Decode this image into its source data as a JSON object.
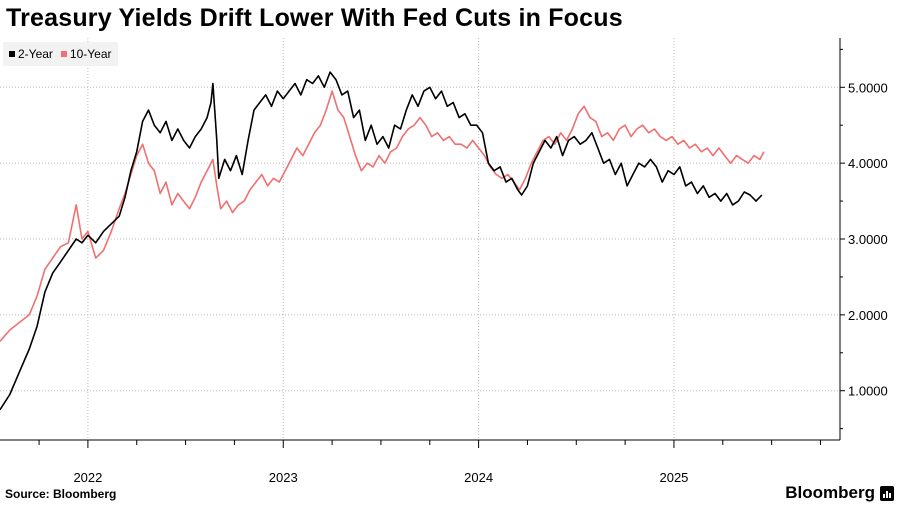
{
  "title": "Treasury Yields Drift Lower With Fed Cuts in Focus",
  "footer": {
    "source": "Source: Bloomberg",
    "brand": "Bloomberg",
    "brand_icon": "bloomberg-terminal-icon"
  },
  "colors": {
    "two_year": "#000000",
    "ten_year": "#f07070",
    "grid": "#bbbbbb"
  },
  "chart_data": {
    "type": "line",
    "title": "Treasury Yields Drift Lower With Fed Cuts in Focus",
    "xlabel": "",
    "ylabel": "",
    "xlim": [
      2021.55,
      2025.85
    ],
    "ylim": [
      0.35,
      5.65
    ],
    "y_ticks": [
      1,
      2,
      3,
      4,
      5
    ],
    "y_tick_labels": [
      "1.0000",
      "2.0000",
      "3.0000",
      "4.0000",
      "5.0000"
    ],
    "x_ticks": [
      2022,
      2023,
      2024,
      2025
    ],
    "x_tick_labels": [
      "2022",
      "2023",
      "2024",
      "2025"
    ],
    "y_axis_position": "right",
    "grid": "horizontal dotted",
    "legend_position": "top-left",
    "series": [
      {
        "name": "2-Year",
        "color": "#000000",
        "points": [
          [
            2021.55,
            0.75
          ],
          [
            2021.6,
            0.95
          ],
          [
            2021.65,
            1.25
          ],
          [
            2021.7,
            1.55
          ],
          [
            2021.74,
            1.85
          ],
          [
            2021.78,
            2.3
          ],
          [
            2021.82,
            2.55
          ],
          [
            2021.86,
            2.7
          ],
          [
            2021.9,
            2.85
          ],
          [
            2021.94,
            3.0
          ],
          [
            2021.97,
            2.95
          ],
          [
            2022.0,
            3.05
          ],
          [
            2022.04,
            2.95
          ],
          [
            2022.08,
            3.1
          ],
          [
            2022.12,
            3.2
          ],
          [
            2022.16,
            3.3
          ],
          [
            2022.19,
            3.55
          ],
          [
            2022.22,
            3.9
          ],
          [
            2022.25,
            4.15
          ],
          [
            2022.28,
            4.55
          ],
          [
            2022.31,
            4.7
          ],
          [
            2022.34,
            4.5
          ],
          [
            2022.37,
            4.4
          ],
          [
            2022.4,
            4.55
          ],
          [
            2022.43,
            4.3
          ],
          [
            2022.46,
            4.45
          ],
          [
            2022.49,
            4.3
          ],
          [
            2022.52,
            4.2
          ],
          [
            2022.55,
            4.35
          ],
          [
            2022.58,
            4.45
          ],
          [
            2022.61,
            4.6
          ],
          [
            2022.63,
            4.8
          ],
          [
            2022.64,
            5.05
          ],
          [
            2022.66,
            4.3
          ],
          [
            2022.67,
            3.8
          ],
          [
            2022.7,
            4.05
          ],
          [
            2022.73,
            3.9
          ],
          [
            2022.76,
            4.1
          ],
          [
            2022.79,
            3.85
          ],
          [
            2022.82,
            4.3
          ],
          [
            2022.85,
            4.7
          ],
          [
            2022.88,
            4.8
          ],
          [
            2022.91,
            4.9
          ],
          [
            2022.94,
            4.75
          ],
          [
            2022.97,
            4.95
          ],
          [
            2023.0,
            4.85
          ],
          [
            2023.03,
            4.95
          ],
          [
            2023.06,
            5.05
          ],
          [
            2023.09,
            4.9
          ],
          [
            2023.12,
            5.1
          ],
          [
            2023.15,
            5.05
          ],
          [
            2023.18,
            5.15
          ],
          [
            2023.21,
            5.0
          ],
          [
            2023.24,
            5.2
          ],
          [
            2023.27,
            5.1
          ],
          [
            2023.3,
            4.9
          ],
          [
            2023.33,
            4.95
          ],
          [
            2023.36,
            4.6
          ],
          [
            2023.39,
            4.7
          ],
          [
            2023.42,
            4.3
          ],
          [
            2023.45,
            4.5
          ],
          [
            2023.48,
            4.25
          ],
          [
            2023.51,
            4.35
          ],
          [
            2023.54,
            4.2
          ],
          [
            2023.57,
            4.5
          ],
          [
            2023.6,
            4.45
          ],
          [
            2023.63,
            4.7
          ],
          [
            2023.66,
            4.9
          ],
          [
            2023.69,
            4.75
          ],
          [
            2023.72,
            4.95
          ],
          [
            2023.75,
            5.0
          ],
          [
            2023.78,
            4.85
          ],
          [
            2023.81,
            4.95
          ],
          [
            2023.84,
            4.75
          ],
          [
            2023.87,
            4.8
          ],
          [
            2023.9,
            4.6
          ],
          [
            2023.93,
            4.65
          ],
          [
            2023.96,
            4.5
          ],
          [
            2023.99,
            4.5
          ],
          [
            2024.02,
            4.4
          ],
          [
            2024.05,
            4.0
          ],
          [
            2024.08,
            3.9
          ],
          [
            2024.11,
            3.95
          ],
          [
            2024.14,
            3.75
          ],
          [
            2024.17,
            3.8
          ],
          [
            2024.2,
            3.65
          ],
          [
            2024.22,
            3.58
          ],
          [
            2024.25,
            3.7
          ],
          [
            2024.28,
            4.0
          ],
          [
            2024.31,
            4.15
          ],
          [
            2024.34,
            4.3
          ],
          [
            2024.37,
            4.2
          ],
          [
            2024.4,
            4.35
          ],
          [
            2024.43,
            4.1
          ],
          [
            2024.46,
            4.3
          ],
          [
            2024.49,
            4.35
          ],
          [
            2024.52,
            4.25
          ],
          [
            2024.55,
            4.3
          ],
          [
            2024.58,
            4.4
          ],
          [
            2024.61,
            4.2
          ],
          [
            2024.64,
            4.0
          ],
          [
            2024.67,
            4.05
          ],
          [
            2024.7,
            3.85
          ],
          [
            2024.73,
            4.0
          ],
          [
            2024.76,
            3.7
          ],
          [
            2024.79,
            3.85
          ],
          [
            2024.82,
            4.0
          ],
          [
            2024.85,
            3.95
          ],
          [
            2024.88,
            4.05
          ],
          [
            2024.91,
            3.95
          ],
          [
            2024.94,
            3.75
          ],
          [
            2024.97,
            3.9
          ],
          [
            2025.0,
            3.85
          ],
          [
            2025.03,
            3.95
          ],
          [
            2025.06,
            3.7
          ],
          [
            2025.09,
            3.75
          ],
          [
            2025.12,
            3.6
          ],
          [
            2025.15,
            3.7
          ],
          [
            2025.18,
            3.55
          ],
          [
            2025.21,
            3.6
          ],
          [
            2025.24,
            3.5
          ],
          [
            2025.27,
            3.6
          ],
          [
            2025.3,
            3.45
          ],
          [
            2025.33,
            3.5
          ],
          [
            2025.36,
            3.62
          ],
          [
            2025.39,
            3.58
          ],
          [
            2025.42,
            3.5
          ],
          [
            2025.45,
            3.58
          ]
        ]
      },
      {
        "name": "10-Year",
        "color": "#f07070",
        "points": [
          [
            2021.55,
            1.65
          ],
          [
            2021.6,
            1.8
          ],
          [
            2021.65,
            1.9
          ],
          [
            2021.7,
            2.0
          ],
          [
            2021.74,
            2.25
          ],
          [
            2021.78,
            2.6
          ],
          [
            2021.82,
            2.75
          ],
          [
            2021.86,
            2.9
          ],
          [
            2021.9,
            2.95
          ],
          [
            2021.94,
            3.45
          ],
          [
            2021.97,
            3.0
          ],
          [
            2022.0,
            3.1
          ],
          [
            2022.04,
            2.75
          ],
          [
            2022.08,
            2.85
          ],
          [
            2022.12,
            3.1
          ],
          [
            2022.16,
            3.4
          ],
          [
            2022.19,
            3.6
          ],
          [
            2022.22,
            3.85
          ],
          [
            2022.25,
            4.1
          ],
          [
            2022.28,
            4.25
          ],
          [
            2022.31,
            4.0
          ],
          [
            2022.34,
            3.9
          ],
          [
            2022.37,
            3.6
          ],
          [
            2022.4,
            3.75
          ],
          [
            2022.43,
            3.45
          ],
          [
            2022.46,
            3.6
          ],
          [
            2022.49,
            3.5
          ],
          [
            2022.52,
            3.4
          ],
          [
            2022.55,
            3.55
          ],
          [
            2022.58,
            3.75
          ],
          [
            2022.61,
            3.9
          ],
          [
            2022.64,
            4.05
          ],
          [
            2022.66,
            3.7
          ],
          [
            2022.68,
            3.4
          ],
          [
            2022.71,
            3.5
          ],
          [
            2022.74,
            3.35
          ],
          [
            2022.77,
            3.45
          ],
          [
            2022.8,
            3.5
          ],
          [
            2022.83,
            3.65
          ],
          [
            2022.86,
            3.75
          ],
          [
            2022.89,
            3.85
          ],
          [
            2022.92,
            3.7
          ],
          [
            2022.95,
            3.8
          ],
          [
            2022.98,
            3.75
          ],
          [
            2023.01,
            3.9
          ],
          [
            2023.04,
            4.05
          ],
          [
            2023.07,
            4.2
          ],
          [
            2023.1,
            4.1
          ],
          [
            2023.13,
            4.25
          ],
          [
            2023.16,
            4.4
          ],
          [
            2023.19,
            4.5
          ],
          [
            2023.22,
            4.7
          ],
          [
            2023.25,
            4.95
          ],
          [
            2023.28,
            4.7
          ],
          [
            2023.31,
            4.6
          ],
          [
            2023.34,
            4.35
          ],
          [
            2023.37,
            4.1
          ],
          [
            2023.4,
            3.9
          ],
          [
            2023.43,
            4.0
          ],
          [
            2023.46,
            3.95
          ],
          [
            2023.49,
            4.1
          ],
          [
            2023.52,
            4.0
          ],
          [
            2023.55,
            4.15
          ],
          [
            2023.58,
            4.2
          ],
          [
            2023.61,
            4.35
          ],
          [
            2023.64,
            4.45
          ],
          [
            2023.67,
            4.5
          ],
          [
            2023.7,
            4.6
          ],
          [
            2023.73,
            4.5
          ],
          [
            2023.76,
            4.35
          ],
          [
            2023.79,
            4.4
          ],
          [
            2023.82,
            4.3
          ],
          [
            2023.85,
            4.35
          ],
          [
            2023.88,
            4.25
          ],
          [
            2023.91,
            4.25
          ],
          [
            2023.94,
            4.2
          ],
          [
            2023.97,
            4.3
          ],
          [
            2024.0,
            4.2
          ],
          [
            2024.03,
            4.1
          ],
          [
            2024.06,
            3.95
          ],
          [
            2024.09,
            3.85
          ],
          [
            2024.12,
            3.8
          ],
          [
            2024.15,
            3.85
          ],
          [
            2024.18,
            3.75
          ],
          [
            2024.21,
            3.65
          ],
          [
            2024.24,
            3.8
          ],
          [
            2024.27,
            4.0
          ],
          [
            2024.3,
            4.15
          ],
          [
            2024.33,
            4.3
          ],
          [
            2024.36,
            4.35
          ],
          [
            2024.39,
            4.25
          ],
          [
            2024.42,
            4.4
          ],
          [
            2024.45,
            4.3
          ],
          [
            2024.48,
            4.45
          ],
          [
            2024.51,
            4.65
          ],
          [
            2024.54,
            4.75
          ],
          [
            2024.57,
            4.6
          ],
          [
            2024.6,
            4.55
          ],
          [
            2024.63,
            4.35
          ],
          [
            2024.66,
            4.4
          ],
          [
            2024.69,
            4.3
          ],
          [
            2024.72,
            4.45
          ],
          [
            2024.75,
            4.5
          ],
          [
            2024.78,
            4.35
          ],
          [
            2024.81,
            4.45
          ],
          [
            2024.84,
            4.5
          ],
          [
            2024.87,
            4.4
          ],
          [
            2024.9,
            4.45
          ],
          [
            2024.93,
            4.35
          ],
          [
            2024.96,
            4.3
          ],
          [
            2024.99,
            4.35
          ],
          [
            2025.02,
            4.25
          ],
          [
            2025.05,
            4.3
          ],
          [
            2025.08,
            4.2
          ],
          [
            2025.11,
            4.25
          ],
          [
            2025.14,
            4.15
          ],
          [
            2025.17,
            4.2
          ],
          [
            2025.2,
            4.1
          ],
          [
            2025.23,
            4.2
          ],
          [
            2025.26,
            4.1
          ],
          [
            2025.29,
            4.0
          ],
          [
            2025.32,
            4.1
          ],
          [
            2025.35,
            4.05
          ],
          [
            2025.38,
            4.0
          ],
          [
            2025.41,
            4.1
          ],
          [
            2025.44,
            4.05
          ],
          [
            2025.46,
            4.15
          ]
        ]
      }
    ]
  }
}
